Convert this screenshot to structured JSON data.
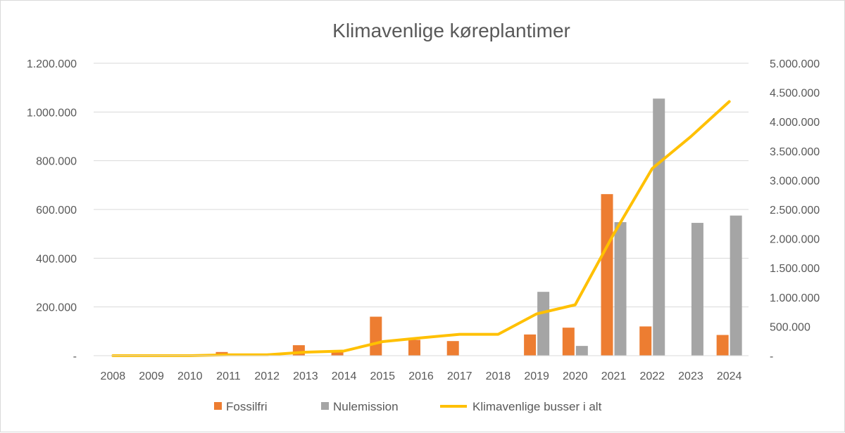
{
  "chart_data": {
    "type": "bar",
    "title": "Klimavenlige køreplantimer",
    "categories": [
      "2008",
      "2009",
      "2010",
      "2011",
      "2012",
      "2013",
      "2014",
      "2015",
      "2016",
      "2017",
      "2018",
      "2019",
      "2020",
      "2021",
      "2022",
      "2023",
      "2024"
    ],
    "series": [
      {
        "name": "Fossilfri",
        "type": "bar",
        "axis": "left",
        "color": "#ED7D31",
        "values": [
          0,
          0,
          0,
          15000,
          0,
          43000,
          20000,
          160000,
          65000,
          60000,
          0,
          87000,
          115000,
          663000,
          120000,
          0,
          85000
        ]
      },
      {
        "name": "Nulemission",
        "type": "bar",
        "axis": "left",
        "color": "#A5A5A5",
        "values": [
          0,
          0,
          0,
          0,
          0,
          0,
          0,
          0,
          0,
          0,
          0,
          262000,
          40000,
          548000,
          1055000,
          545000,
          575000
        ]
      },
      {
        "name": "Klimavenlige busser i alt",
        "type": "line",
        "axis": "right",
        "color": "#FFC000",
        "values": [
          0,
          0,
          0,
          15000,
          15000,
          60000,
          80000,
          240000,
          305000,
          365000,
          365000,
          715000,
          870000,
          2080000,
          3200000,
          3745000,
          4345000
        ]
      }
    ],
    "y_left": {
      "ylim": [
        0,
        1200000
      ],
      "ticks": [
        0,
        200000,
        400000,
        600000,
        800000,
        1000000,
        1200000
      ],
      "tick_labels": [
        "-",
        "200.000",
        "400.000",
        "600.000",
        "800.000",
        "1.000.000",
        "1.200.000"
      ]
    },
    "y_right": {
      "ylim": [
        0,
        5000000
      ],
      "ticks": [
        0,
        500000,
        1000000,
        1500000,
        2000000,
        2500000,
        3000000,
        3500000,
        4000000,
        4500000,
        5000000
      ],
      "tick_labels": [
        "-",
        "500.000",
        "1.000.000",
        "1.500.000",
        "2.000.000",
        "2.500.000",
        "3.000.000",
        "3.500.000",
        "4.000.000",
        "4.500.000",
        "5.000.000"
      ]
    },
    "grid": true,
    "legend_position": "bottom",
    "colors": {
      "grid": "#d9d9d9",
      "text": "#595959"
    }
  }
}
